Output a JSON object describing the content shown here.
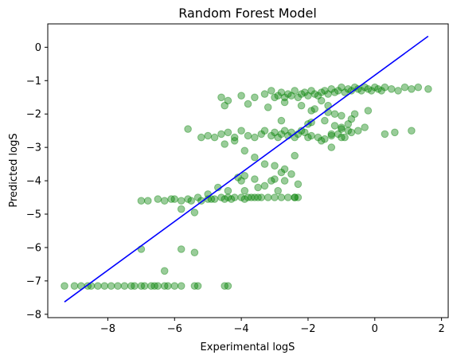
{
  "chart_data": {
    "type": "scatter",
    "title": "Random Forest Model",
    "xlabel": "Experimental logS",
    "ylabel": "Predicted logS",
    "xlim": [
      -9.8,
      2.2
    ],
    "ylim": [
      -8.1,
      0.7
    ],
    "xticks": [
      -8,
      -6,
      -4,
      -2,
      0,
      2
    ],
    "xtick_labels": [
      "−8",
      "−6",
      "−4",
      "−2",
      "0",
      "2"
    ],
    "yticks": [
      0,
      -1,
      -2,
      -3,
      -4,
      -5,
      -6,
      -7,
      -8
    ],
    "ytick_labels": [
      "0",
      "−1",
      "−2",
      "−3",
      "−4",
      "−5",
      "−6",
      "−7",
      "−8"
    ],
    "grid": false,
    "point_color": "#008000",
    "point_alpha": 0.4,
    "line_color": "#0000ff",
    "series": [
      {
        "type": "scatter",
        "x": [
          -9.3,
          -9.0,
          -8.8,
          -8.6,
          -8.5,
          -8.3,
          -8.1,
          -7.9,
          -7.7,
          -7.5,
          -7.3,
          -7.2,
          -7.0,
          -6.9,
          -6.7,
          -6.6,
          -6.5,
          -6.3,
          -6.2,
          -6.0,
          -5.8,
          -5.4,
          -5.3,
          -4.5,
          -4.4,
          -7.0,
          -6.3,
          -5.8,
          -5.4,
          -7.0,
          -6.8,
          -6.5,
          -6.3,
          -6.1,
          -6.0,
          -5.8,
          -5.6,
          -5.5,
          -5.3,
          -5.2,
          -5.0,
          -4.9,
          -4.8,
          -4.6,
          -4.5,
          -4.4,
          -4.3,
          -4.2,
          -4.0,
          -3.9,
          -3.8,
          -3.7,
          -3.6,
          -3.5,
          -3.4,
          -3.2,
          -3.0,
          -2.8,
          -2.6,
          -2.4,
          -2.3,
          -5.4,
          -5.8,
          -5.0,
          -4.7,
          -4.4,
          -4.0,
          -3.9,
          -3.5,
          -3.3,
          -3.1,
          -2.9,
          -2.7,
          -2.4,
          -4.1,
          -3.9,
          -3.6,
          -3.0,
          -2.8,
          -2.5,
          -2.3,
          -5.6,
          -5.2,
          -5.0,
          -4.8,
          -4.6,
          -4.4,
          -4.2,
          -4.0,
          -3.8,
          -3.6,
          -3.4,
          -3.3,
          -3.1,
          -3.0,
          -2.9,
          -2.8,
          -2.7,
          -2.6,
          -2.5,
          -2.4,
          -2.3,
          -2.2,
          -2.1,
          -2.0,
          -1.9,
          -1.7,
          -1.5,
          -1.3,
          -1.1,
          -0.9,
          -0.7,
          -0.5,
          -0.3,
          0.3,
          0.6,
          -4.5,
          -4.2,
          -3.9,
          -3.6,
          -3.3,
          -3.0,
          -2.7,
          -2.4,
          -2.0,
          -1.6,
          -1.3,
          -1.0,
          -0.8,
          -4.6,
          -4.4,
          -4.0,
          -3.6,
          -3.3,
          -3.1,
          -3.0,
          -2.9,
          -2.8,
          -2.7,
          -2.6,
          -2.5,
          -2.4,
          -2.3,
          -2.2,
          -2.1,
          -2.0,
          -1.9,
          -1.8,
          -1.7,
          -1.6,
          -1.5,
          -1.4,
          -1.3,
          -1.2,
          -1.1,
          -1.0,
          -0.9,
          -0.8,
          -0.7,
          -0.6,
          -0.5,
          -0.4,
          -0.3,
          -0.2,
          -0.1,
          0.0,
          0.1,
          0.2,
          0.3,
          0.5,
          0.7,
          0.9,
          1.1,
          1.3,
          1.6,
          -4.5,
          -3.8,
          -3.2,
          -2.7,
          -2.2,
          -1.8,
          -1.4,
          -1.0,
          -0.6,
          -0.2,
          -2.8,
          -1.9,
          -1.2,
          -0.7,
          -1.0,
          1.1,
          -1.3,
          -1.0,
          -1.5,
          -1.2,
          -1.6,
          -0.8,
          -1.9,
          -1.4
        ],
        "y": [
          -7.15,
          -7.15,
          -7.15,
          -7.15,
          -7.15,
          -7.15,
          -7.15,
          -7.15,
          -7.15,
          -7.15,
          -7.15,
          -7.15,
          -7.15,
          -7.15,
          -7.15,
          -7.15,
          -7.15,
          -7.15,
          -7.15,
          -7.15,
          -7.15,
          -7.15,
          -7.15,
          -7.15,
          -7.15,
          -6.05,
          -6.7,
          -6.05,
          -6.15,
          -4.6,
          -4.6,
          -4.55,
          -4.6,
          -4.55,
          -4.55,
          -4.6,
          -4.55,
          -4.6,
          -4.5,
          -4.6,
          -4.55,
          -4.55,
          -4.55,
          -4.5,
          -4.55,
          -4.5,
          -4.55,
          -4.5,
          -4.5,
          -4.55,
          -4.5,
          -4.5,
          -4.5,
          -4.5,
          -4.5,
          -4.5,
          -4.5,
          -4.5,
          -4.5,
          -4.5,
          -4.5,
          -4.95,
          -4.85,
          -4.4,
          -4.2,
          -4.3,
          -4.0,
          -4.3,
          -4.2,
          -4.15,
          -4.0,
          -4.3,
          -4.0,
          -4.5,
          -3.9,
          -3.85,
          -3.95,
          -3.95,
          -3.75,
          -3.8,
          -4.1,
          -2.45,
          -2.7,
          -2.65,
          -2.7,
          -2.6,
          -2.55,
          -2.7,
          -2.5,
          -2.65,
          -2.7,
          -2.6,
          -2.5,
          -2.65,
          -2.55,
          -2.7,
          -2.6,
          -2.5,
          -2.65,
          -2.55,
          -2.7,
          -2.6,
          -2.5,
          -2.55,
          -2.7,
          -2.65,
          -2.7,
          -2.75,
          -2.65,
          -2.6,
          -2.7,
          -2.55,
          -2.5,
          -2.4,
          -2.6,
          -2.55,
          -2.9,
          -2.8,
          -3.1,
          -3.3,
          -3.5,
          -3.55,
          -3.65,
          -3.25,
          -2.3,
          -2.8,
          -3.0,
          -2.7,
          -2.5,
          -1.5,
          -1.6,
          -1.45,
          -1.5,
          -1.4,
          -1.3,
          -1.5,
          -1.45,
          -1.35,
          -1.5,
          -1.4,
          -1.45,
          -1.3,
          -1.5,
          -1.4,
          -1.35,
          -1.45,
          -1.3,
          -1.4,
          -1.45,
          -1.35,
          -1.3,
          -1.4,
          -1.25,
          -1.35,
          -1.3,
          -1.2,
          -1.35,
          -1.25,
          -1.3,
          -1.2,
          -1.25,
          -1.3,
          -1.2,
          -1.25,
          -1.3,
          -1.2,
          -1.25,
          -1.3,
          -1.2,
          -1.25,
          -1.3,
          -1.2,
          -1.25,
          -1.2,
          -1.25,
          -1.75,
          -1.7,
          -1.8,
          -1.65,
          -1.75,
          -1.85,
          -1.95,
          -2.05,
          -2.0,
          -1.9,
          -2.2,
          -2.25,
          -2.35,
          -2.15,
          -2.45,
          -2.5,
          -2.6,
          -2.4,
          -2.2,
          -2.0,
          -1.6,
          -2.3,
          -1.9,
          -1.75
        ]
      },
      {
        "type": "line",
        "x": [
          -9.3,
          1.6
        ],
        "y": [
          -7.63,
          0.33
        ]
      }
    ]
  }
}
